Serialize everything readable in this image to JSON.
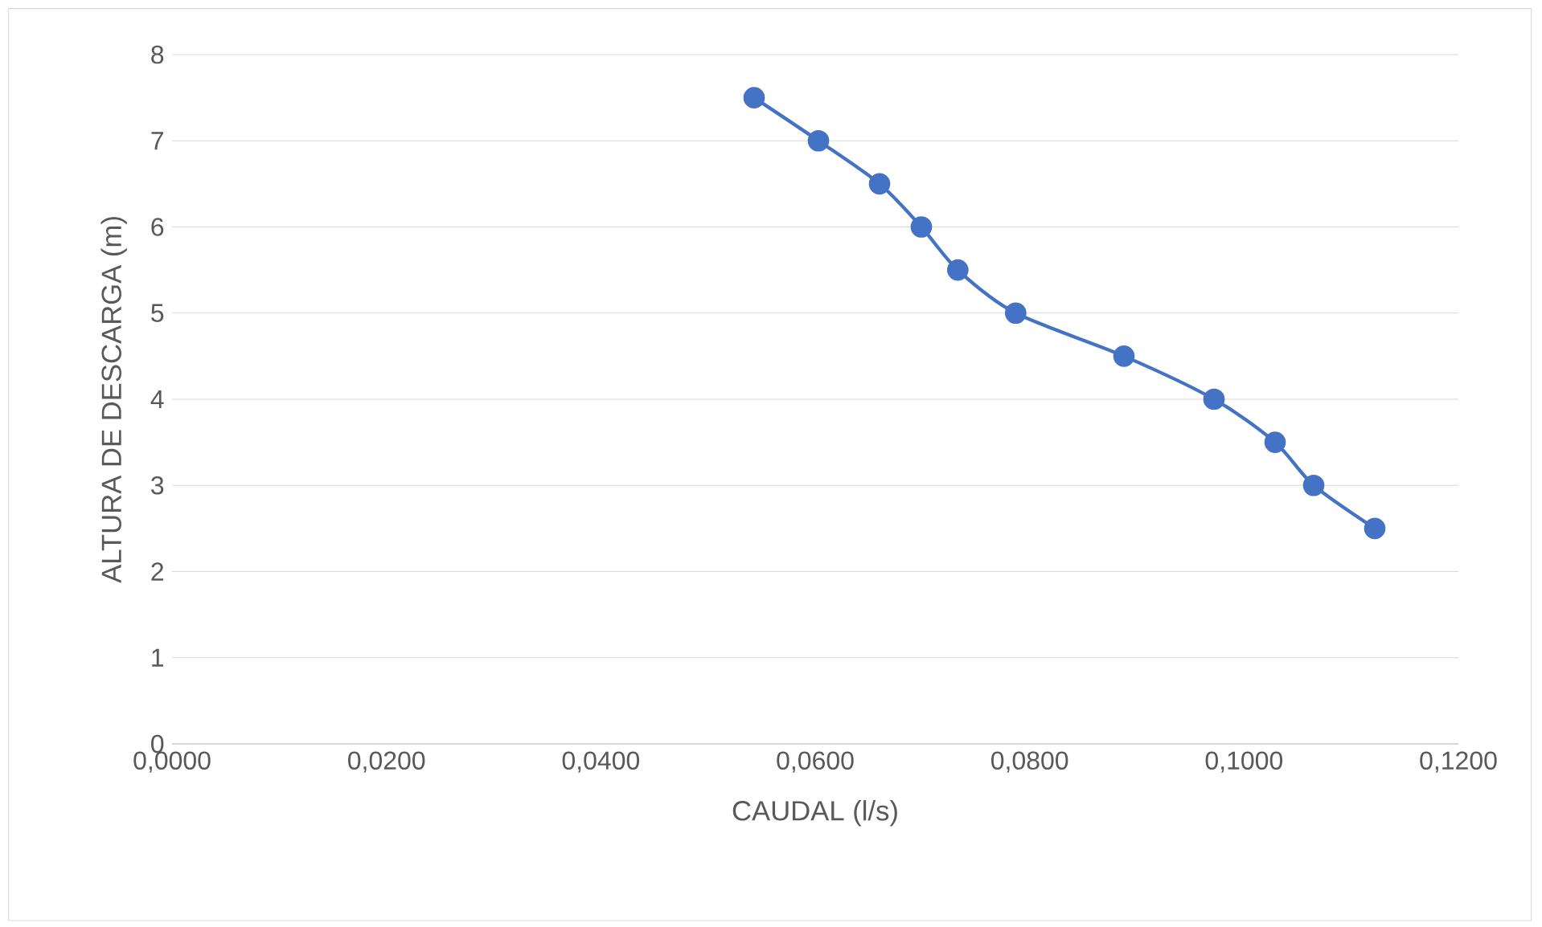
{
  "chart_data": {
    "type": "line",
    "xlabel": "CAUDAL (l/s)",
    "ylabel": "ALTURA DE DESCARGA (m)",
    "x": [
      0.0543,
      0.0603,
      0.066,
      0.0699,
      0.0733,
      0.0787,
      0.0888,
      0.0972,
      0.1029,
      0.1065,
      0.1122
    ],
    "series": [
      {
        "color": "#4472c4",
        "values": [
          7.5,
          7,
          6.5,
          6,
          5.5,
          5,
          4.5,
          4,
          3.5,
          3,
          2.5
        ]
      }
    ],
    "xlim": [
      0,
      0.12
    ],
    "xticks": [
      {
        "value": 0,
        "label": "0,0000"
      },
      {
        "value": 0.02,
        "label": "0,0200"
      },
      {
        "value": 0.04,
        "label": "0,0400"
      },
      {
        "value": 0.06,
        "label": "0,0600"
      },
      {
        "value": 0.08,
        "label": "0,0800"
      },
      {
        "value": 0.1,
        "label": "0,1000"
      },
      {
        "value": 0.12,
        "label": "0,1200"
      }
    ],
    "ylim": [
      0,
      8
    ],
    "yticks": [
      0,
      1,
      2,
      3,
      4,
      5,
      6,
      7,
      8
    ],
    "grid": "y",
    "marker": "circle",
    "line_style": "solid"
  }
}
